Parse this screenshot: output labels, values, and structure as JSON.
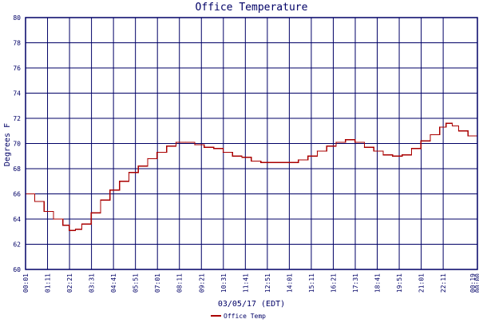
{
  "chart_data": {
    "type": "line",
    "title": "Office Temperature",
    "xlabel": "03/05/17 (EDT)",
    "ylabel": "Degrees F",
    "ylim": [
      60,
      80
    ],
    "yticks": [
      60,
      62,
      64,
      66,
      68,
      70,
      72,
      74,
      76,
      78,
      80
    ],
    "xticks": [
      "00:01",
      "01:11",
      "02:21",
      "03:31",
      "04:41",
      "05:51",
      "07:01",
      "08:11",
      "09:21",
      "10:31",
      "11:41",
      "12:51",
      "14:01",
      "15:11",
      "16:21",
      "17:31",
      "18:41",
      "19:51",
      "21:01",
      "22:11",
      "00:00"
    ],
    "xtick_last_overlap": "00:19",
    "grid": true,
    "legend_position": "bottom-left",
    "colors": {
      "series": "#aa0000",
      "grid": "#000066",
      "text": "#000066",
      "background": "#ffffff"
    },
    "series": [
      {
        "name": "Office Temp",
        "x": [
          "00:01",
          "00:30",
          "01:00",
          "01:30",
          "02:00",
          "02:20",
          "02:40",
          "03:00",
          "03:30",
          "04:00",
          "04:30",
          "05:00",
          "05:30",
          "06:00",
          "06:30",
          "07:00",
          "07:30",
          "08:00",
          "08:30",
          "09:00",
          "09:30",
          "10:00",
          "10:30",
          "11:00",
          "11:30",
          "12:00",
          "12:30",
          "13:00",
          "13:30",
          "14:00",
          "14:30",
          "15:00",
          "15:30",
          "16:00",
          "16:30",
          "17:00",
          "17:30",
          "18:00",
          "18:30",
          "19:00",
          "19:30",
          "20:00",
          "20:30",
          "21:00",
          "21:30",
          "22:00",
          "22:20",
          "22:40",
          "23:00",
          "23:30",
          "00:00"
        ],
        "values": [
          66.0,
          65.4,
          64.6,
          64.0,
          63.5,
          63.1,
          63.2,
          63.6,
          64.5,
          65.5,
          66.3,
          67.0,
          67.7,
          68.2,
          68.8,
          69.3,
          69.8,
          70.1,
          70.1,
          69.9,
          69.7,
          69.6,
          69.3,
          69.0,
          68.9,
          68.6,
          68.5,
          68.5,
          68.5,
          68.5,
          68.7,
          69.0,
          69.4,
          69.8,
          70.1,
          70.3,
          70.1,
          69.7,
          69.4,
          69.1,
          69.0,
          69.1,
          69.6,
          70.2,
          70.7,
          71.3,
          71.6,
          71.4,
          71.0,
          70.6,
          70.2
        ]
      }
    ]
  }
}
